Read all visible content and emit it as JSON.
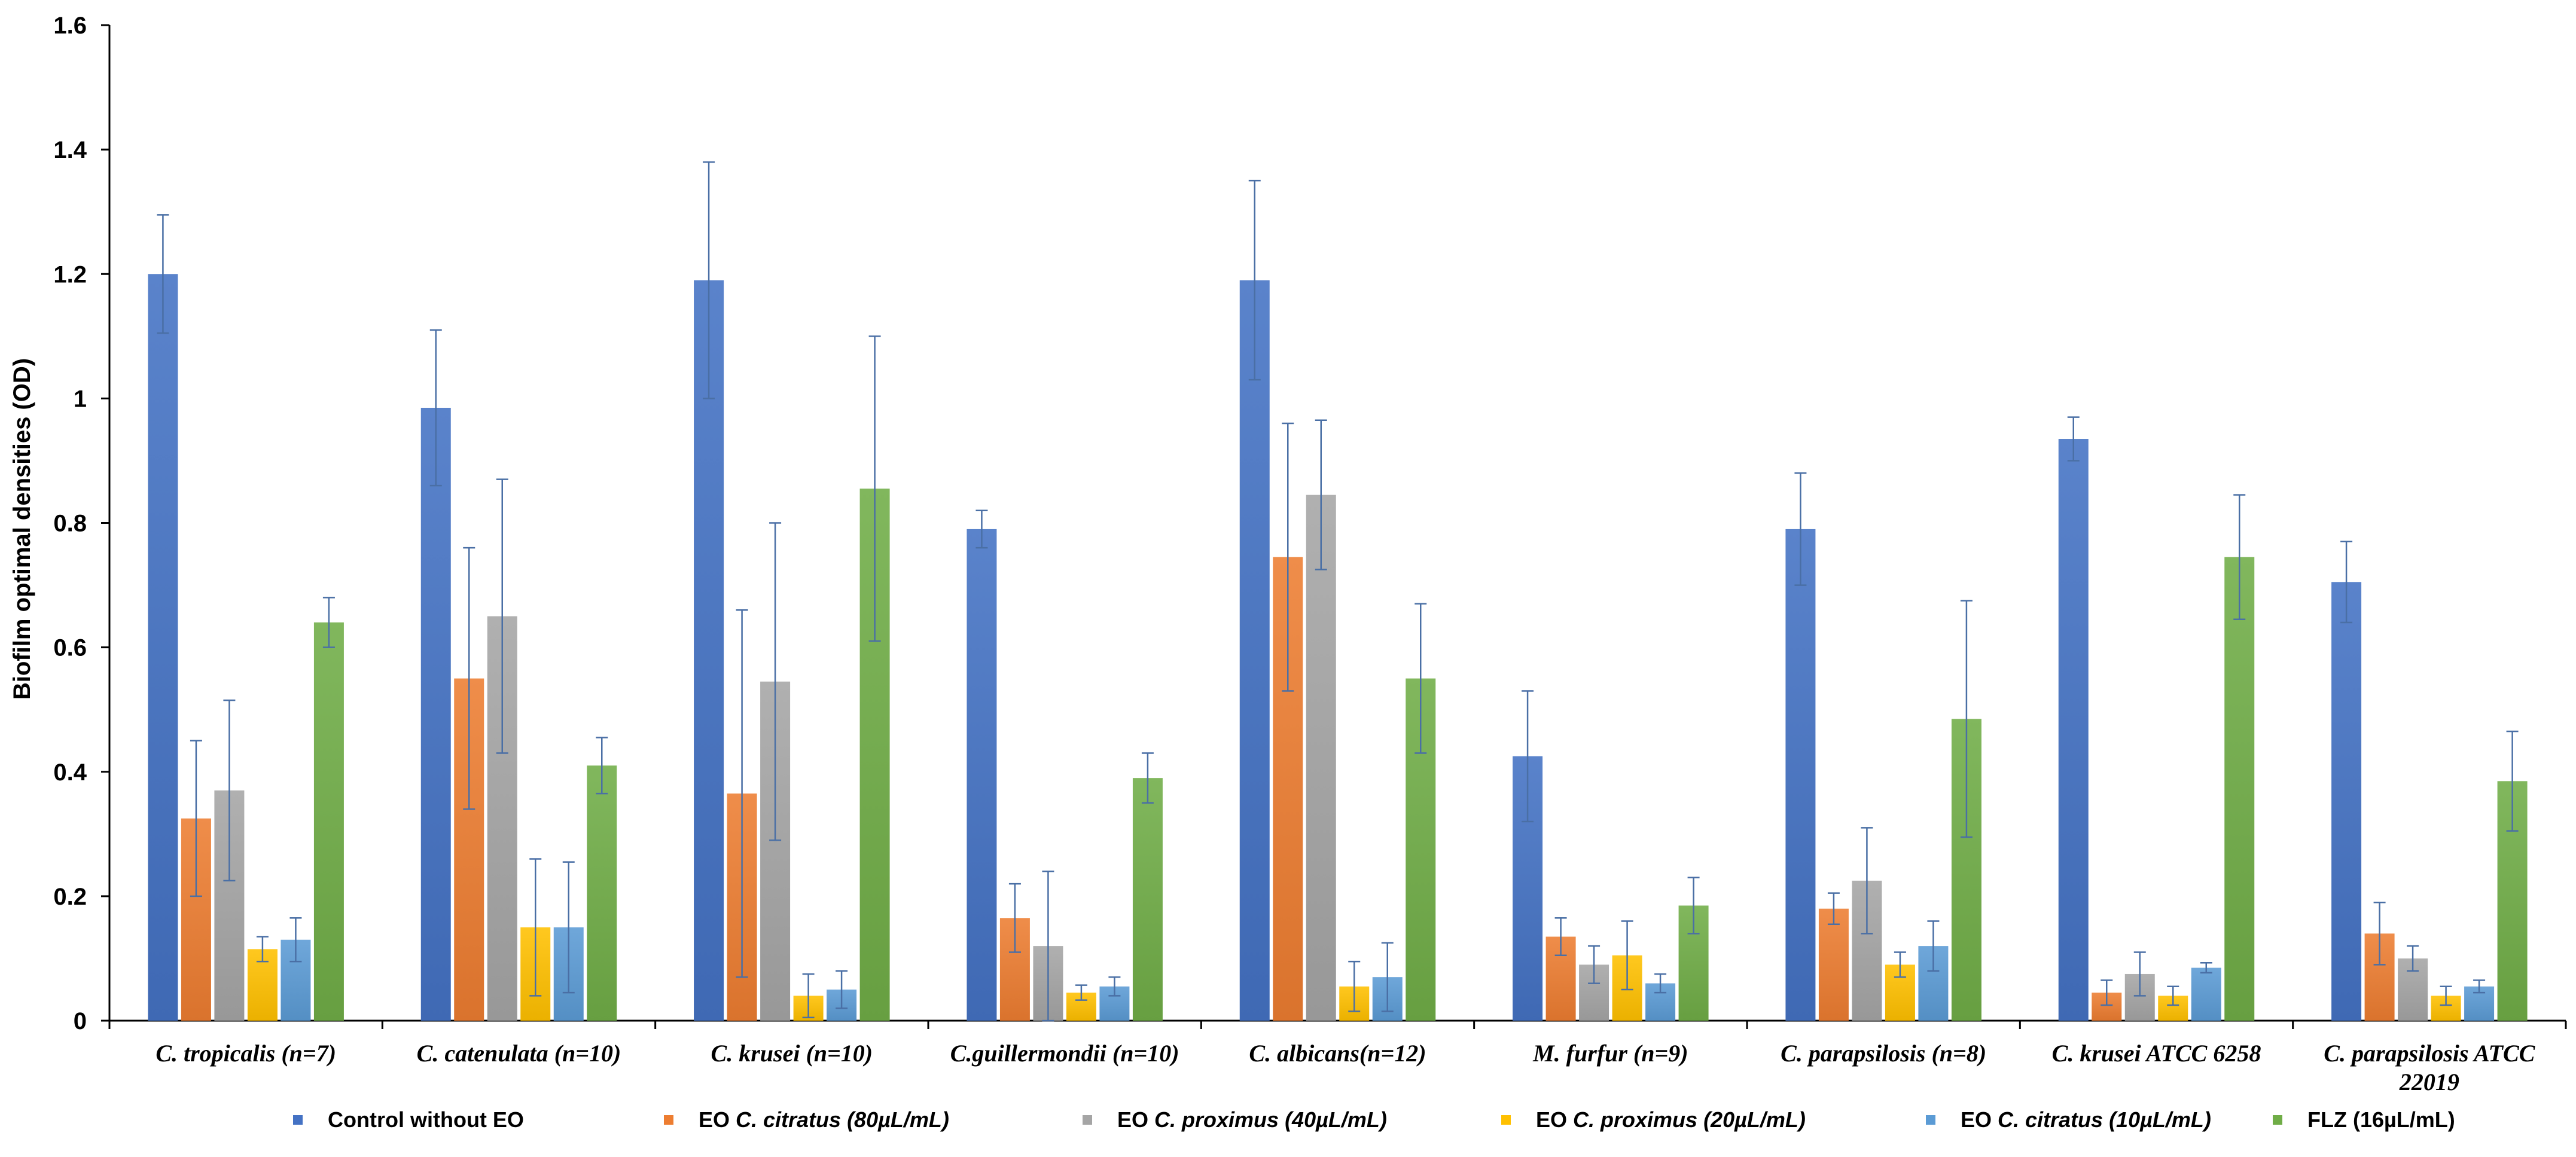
{
  "chart_data": {
    "type": "bar",
    "title": "",
    "xlabel": "",
    "ylabel": "Biofilm optimal densities (OD)",
    "ylim": [
      0,
      1.6
    ],
    "yticks": [
      "0",
      "0.2",
      "0.4",
      "0.6",
      "0.8",
      "1",
      "1.2",
      "1.4",
      "1.6"
    ],
    "grid": false,
    "legend_position": "bottom",
    "categories": [
      [
        "C. tropicalis (n=7)"
      ],
      [
        "C. catenulata (n=10)"
      ],
      [
        "C. krusei (n=10)"
      ],
      [
        "C.guillermondii (n=10)"
      ],
      [
        "C. albicans(n=12)"
      ],
      [
        "M. furfur (n=9)"
      ],
      [
        "C. parapsilosis (n=8)"
      ],
      [
        "C. krusei ATCC 6258"
      ],
      [
        "C. parapsilosis ATCC",
        "22019"
      ]
    ],
    "series": [
      {
        "name": "Control without EO",
        "legend_parts": [
          {
            "text": "Control without EO",
            "italic": false
          }
        ],
        "color": "#4472C4",
        "values": [
          1.2,
          0.985,
          1.19,
          0.79,
          1.19,
          0.425,
          0.79,
          0.935,
          0.705
        ],
        "errors": [
          0.095,
          0.125,
          0.19,
          0.03,
          0.16,
          0.105,
          0.09,
          0.035,
          0.065
        ]
      },
      {
        "name": "EO C. citratus (80µL/mL)",
        "legend_parts": [
          {
            "text": "EO ",
            "italic": false
          },
          {
            "text": "C. citratus",
            "italic": true
          },
          {
            "text": "  (80µL/mL)",
            "italic": true
          }
        ],
        "color": "#ED7D31",
        "values": [
          0.325,
          0.55,
          0.365,
          0.165,
          0.745,
          0.135,
          0.18,
          0.045,
          0.14
        ],
        "errors": [
          0.125,
          0.21,
          0.295,
          0.055,
          0.215,
          0.03,
          0.025,
          0.02,
          0.05
        ]
      },
      {
        "name": "EO C. proximus (40µL/mL)",
        "legend_parts": [
          {
            "text": "EO ",
            "italic": false
          },
          {
            "text": "C. proximus",
            "italic": true
          },
          {
            "text": "  (40µL/mL)",
            "italic": true
          }
        ],
        "color": "#A5A5A5",
        "values": [
          0.37,
          0.65,
          0.545,
          0.12,
          0.845,
          0.09,
          0.225,
          0.075,
          0.1
        ],
        "errors": [
          0.145,
          0.22,
          0.255,
          0.12,
          0.12,
          0.03,
          0.085,
          0.035,
          0.02
        ]
      },
      {
        "name": "EO C. proximus (20µL/mL)",
        "legend_parts": [
          {
            "text": "EO ",
            "italic": false
          },
          {
            "text": "C. proximus",
            "italic": true
          },
          {
            "text": "  (20µL/mL)",
            "italic": true
          }
        ],
        "color": "#FFC000",
        "values": [
          0.115,
          0.15,
          0.04,
          0.045,
          0.055,
          0.105,
          0.09,
          0.04,
          0.04
        ],
        "errors": [
          0.02,
          0.11,
          0.035,
          0.012,
          0.04,
          0.055,
          0.02,
          0.015,
          0.015
        ]
      },
      {
        "name": "EO C. citratus (10µL/mL)",
        "legend_parts": [
          {
            "text": "EO ",
            "italic": false
          },
          {
            "text": "C. citratus",
            "italic": true
          },
          {
            "text": "  (10µL/mL)",
            "italic": true
          }
        ],
        "color": "#5B9BD5",
        "values": [
          0.13,
          0.15,
          0.05,
          0.055,
          0.07,
          0.06,
          0.12,
          0.085,
          0.055
        ],
        "errors": [
          0.035,
          0.105,
          0.03,
          0.015,
          0.055,
          0.015,
          0.04,
          0.008,
          0.01
        ]
      },
      {
        "name": "FLZ (16µL/mL)",
        "legend_parts": [
          {
            "text": "FLZ (16µL/mL)",
            "italic": false
          }
        ],
        "color": "#70AD47",
        "values": [
          0.64,
          0.41,
          0.855,
          0.39,
          0.55,
          0.185,
          0.485,
          0.745,
          0.385
        ],
        "errors": [
          0.04,
          0.045,
          0.245,
          0.04,
          0.12,
          0.045,
          0.19,
          0.1,
          0.08
        ]
      }
    ]
  }
}
